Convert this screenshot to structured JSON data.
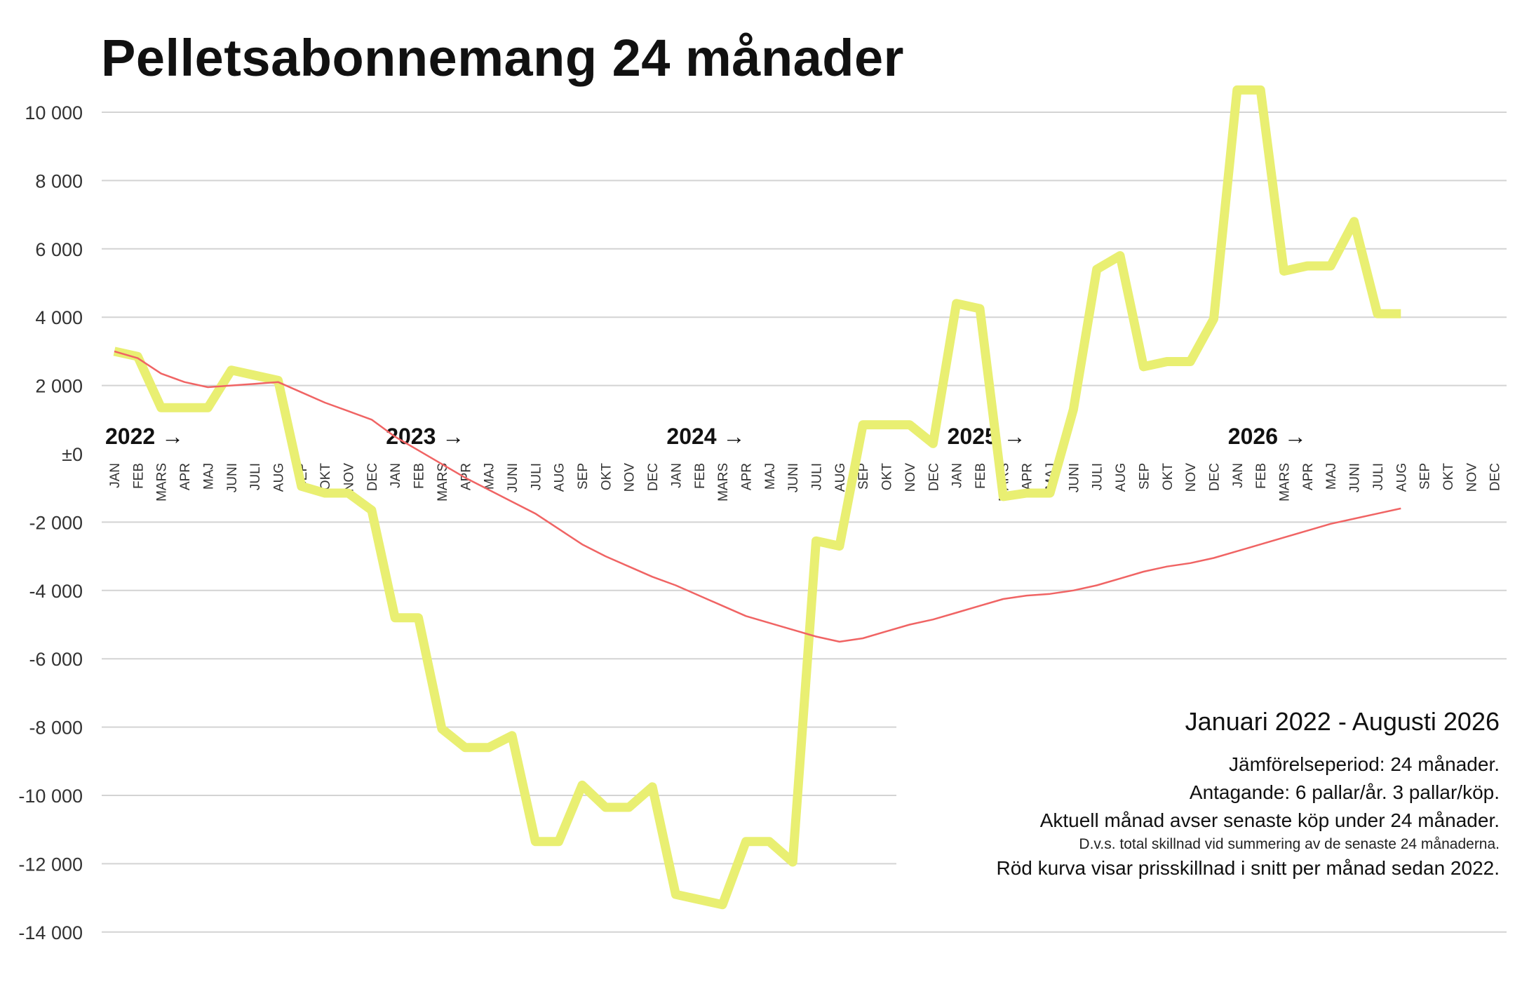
{
  "chart_data": {
    "type": "line",
    "title": "Pelletsabonnemang 24 månader",
    "ylim": [
      -14000,
      10000
    ],
    "yticks": [
      {
        "value": 10000,
        "label": "10 000"
      },
      {
        "value": 8000,
        "label": "8 000"
      },
      {
        "value": 6000,
        "label": "6 000"
      },
      {
        "value": 4000,
        "label": "4 000"
      },
      {
        "value": 2000,
        "label": "2 000"
      },
      {
        "value": 0,
        "label": "±0"
      },
      {
        "value": -2000,
        "label": "-2 000"
      },
      {
        "value": -4000,
        "label": "-4 000"
      },
      {
        "value": -6000,
        "label": "-6 000"
      },
      {
        "value": -8000,
        "label": "-8 000"
      },
      {
        "value": -10000,
        "label": "-10 000"
      },
      {
        "value": -12000,
        "label": "-12 000"
      },
      {
        "value": -14000,
        "label": "-14 000"
      }
    ],
    "grid": true,
    "year_labels": [
      "2022 →",
      "2023 →",
      "2024 →",
      "2025 →",
      "2026 →"
    ],
    "month_labels": [
      "JAN",
      "FEB",
      "MARS",
      "APR",
      "MAJ",
      "JUNI",
      "JULI",
      "AUG",
      "SEP",
      "OKT",
      "NOV",
      "DEC"
    ],
    "series": [
      {
        "key": "monthly",
        "color": "#e9ef72",
        "values": [
          3000,
          2850,
          1350,
          1350,
          1350,
          2450,
          2300,
          2150,
          -950,
          -1150,
          -1150,
          -1650,
          -4800,
          -4800,
          -8050,
          -8600,
          -8600,
          -8250,
          -11350,
          -11350,
          -9700,
          -10350,
          -10350,
          -9750,
          -12900,
          -13050,
          -13200,
          -11350,
          -11350,
          -11950,
          -2550,
          -2700,
          850,
          850,
          850,
          300,
          4400,
          4250,
          -1250,
          -1150,
          -1150,
          1300,
          5400,
          5800,
          2550,
          2700,
          2700,
          3950,
          10650,
          10650,
          5350,
          5500,
          5500,
          6800,
          4100,
          4100
        ]
      },
      {
        "key": "average",
        "color": "#f06464",
        "values": [
          3000,
          2800,
          2350,
          2100,
          1950,
          2000,
          2050,
          2100,
          1800,
          1500,
          1250,
          1000,
          500,
          100,
          -300,
          -700,
          -1050,
          -1400,
          -1750,
          -2200,
          -2650,
          -3000,
          -3300,
          -3600,
          -3850,
          -4150,
          -4450,
          -4750,
          -4950,
          -5150,
          -5350,
          -5500,
          -5400,
          -5200,
          -5000,
          -4850,
          -4650,
          -4450,
          -4250,
          -4150,
          -4100,
          -4000,
          -3850,
          -3650,
          -3450,
          -3300,
          -3200,
          -3050,
          -2850,
          -2650,
          -2450,
          -2250,
          -2050,
          -1900,
          -1750,
          -1600
        ]
      }
    ]
  },
  "notes": {
    "period": "Januari 2022 - Augusti 2026",
    "line1": "Jämförelseperiod: 24 månader.",
    "line2": "Antagande: 6 pallar/år. 3 pallar/köp.",
    "line3": "Aktuell månad avser senaste köp under 24 månader.",
    "line4": "D.v.s. total skillnad vid summering av de senaste 24 månaderna.",
    "line5": "Röd kurva visar prisskillnad i snitt per månad sedan 2022."
  }
}
